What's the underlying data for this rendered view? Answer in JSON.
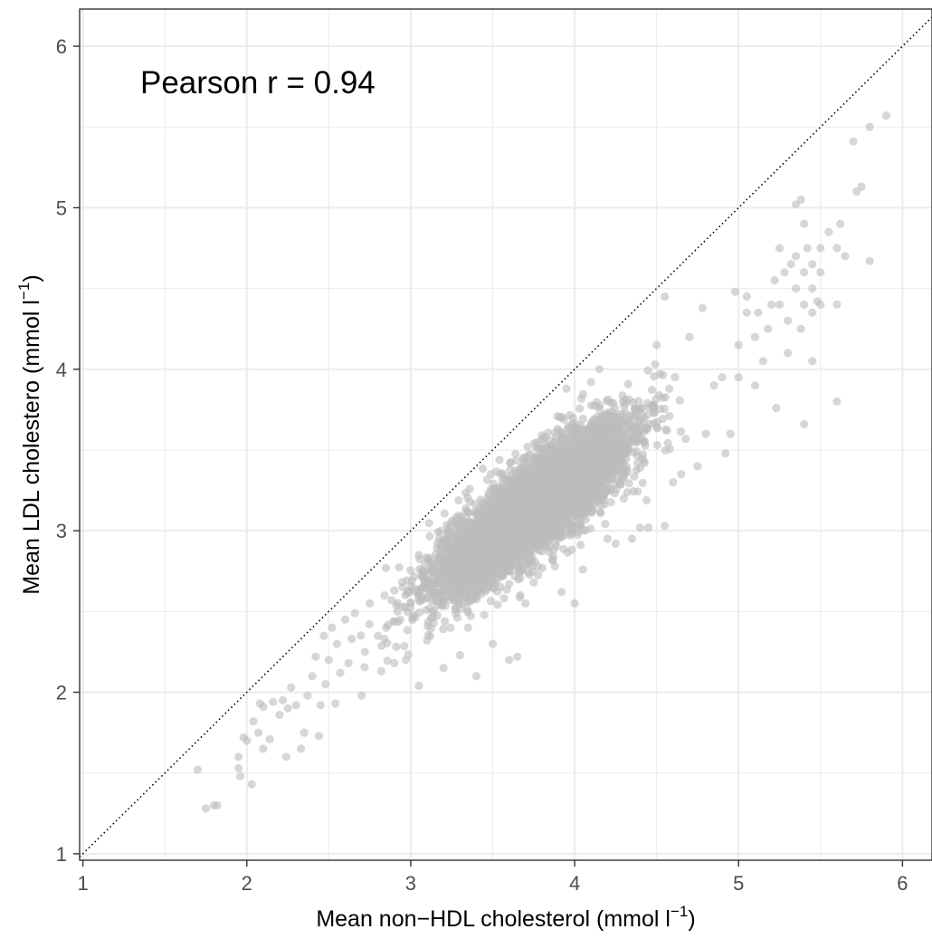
{
  "chart_data": {
    "type": "scatter",
    "annotation": "Pearson r = 0.94",
    "xlabel": {
      "main": "Mean non−HDL cholesterol (mmol l",
      "sup": "−1",
      "close": ")"
    },
    "ylabel": {
      "main": "Mean LDL cholestero (mmol l",
      "sup": "−1",
      "close": ")"
    },
    "xlim": [
      0.98,
      6.18
    ],
    "ylim": [
      0.96,
      6.23
    ],
    "x_ticks": [
      "1",
      "2",
      "3",
      "4",
      "5",
      "6"
    ],
    "y_ticks": [
      "1",
      "2",
      "3",
      "4",
      "5",
      "6"
    ],
    "x_tick_values": [
      1,
      2,
      3,
      4,
      5,
      6
    ],
    "y_tick_values": [
      1,
      2,
      3,
      4,
      5,
      6
    ],
    "reference_line": {
      "slope": 1,
      "intercept": 0,
      "style": "dotted"
    },
    "grid": true,
    "point_color": "#bdbdbd",
    "point_opacity": 0.6,
    "points": [
      [
        1.7,
        1.52
      ],
      [
        1.75,
        1.28
      ],
      [
        1.8,
        1.3
      ],
      [
        1.82,
        1.3
      ],
      [
        1.95,
        1.6
      ],
      [
        1.95,
        1.53
      ],
      [
        1.96,
        1.48
      ],
      [
        1.98,
        1.72
      ],
      [
        2.0,
        1.7
      ],
      [
        2.03,
        1.43
      ],
      [
        2.04,
        1.82
      ],
      [
        2.07,
        1.75
      ],
      [
        2.08,
        1.93
      ],
      [
        2.1,
        1.65
      ],
      [
        2.1,
        1.91
      ],
      [
        2.14,
        1.71
      ],
      [
        2.16,
        1.94
      ],
      [
        2.2,
        1.86
      ],
      [
        2.22,
        1.95
      ],
      [
        2.24,
        1.6
      ],
      [
        2.25,
        1.9
      ],
      [
        2.27,
        2.03
      ],
      [
        2.3,
        1.92
      ],
      [
        2.33,
        1.65
      ],
      [
        2.35,
        1.75
      ],
      [
        2.37,
        1.98
      ],
      [
        2.4,
        2.1
      ],
      [
        2.42,
        2.22
      ],
      [
        2.44,
        1.73
      ],
      [
        2.45,
        1.92
      ],
      [
        2.47,
        2.35
      ],
      [
        2.48,
        2.05
      ],
      [
        2.5,
        2.2
      ],
      [
        2.52,
        2.4
      ],
      [
        2.54,
        1.93
      ],
      [
        2.55,
        2.3
      ],
      [
        2.57,
        2.12
      ],
      [
        2.6,
        2.45
      ],
      [
        2.62,
        2.18
      ],
      [
        2.64,
        2.33
      ],
      [
        2.66,
        2.49
      ],
      [
        2.7,
        1.98
      ],
      [
        2.72,
        2.25
      ],
      [
        2.75,
        2.55
      ],
      [
        2.8,
        2.35
      ],
      [
        2.82,
        2.13
      ],
      [
        2.84,
        2.6
      ],
      [
        2.85,
        2.4
      ],
      [
        2.9,
        2.18
      ],
      [
        2.92,
        2.5
      ],
      [
        2.95,
        2.65
      ],
      [
        2.97,
        2.2
      ],
      [
        3.05,
        2.04
      ],
      [
        3.1,
        2.32
      ],
      [
        3.2,
        2.15
      ],
      [
        3.25,
        2.88
      ],
      [
        3.3,
        2.23
      ],
      [
        3.35,
        2.4
      ],
      [
        3.4,
        2.1
      ],
      [
        3.45,
        2.88
      ],
      [
        3.5,
        2.3
      ],
      [
        3.6,
        2.2
      ],
      [
        3.65,
        2.22
      ],
      [
        3.7,
        2.55
      ],
      [
        3.75,
        2.68
      ],
      [
        3.78,
        3.42
      ],
      [
        3.85,
        3.5
      ],
      [
        3.88,
        2.78
      ],
      [
        3.9,
        2.95
      ],
      [
        3.92,
        2.62
      ],
      [
        3.95,
        3.88
      ],
      [
        4.0,
        2.55
      ],
      [
        4.05,
        2.76
      ],
      [
        4.1,
        3.92
      ],
      [
        4.15,
        4.0
      ],
      [
        4.2,
        2.95
      ],
      [
        4.25,
        2.92
      ],
      [
        4.3,
        3.2
      ],
      [
        4.35,
        2.95
      ],
      [
        4.4,
        3.02
      ],
      [
        4.45,
        3.02
      ],
      [
        4.5,
        4.15
      ],
      [
        4.55,
        3.03
      ],
      [
        4.55,
        4.45
      ],
      [
        4.6,
        3.3
      ],
      [
        4.65,
        3.35
      ],
      [
        4.7,
        4.2
      ],
      [
        4.75,
        3.4
      ],
      [
        4.78,
        4.38
      ],
      [
        4.8,
        3.6
      ],
      [
        4.85,
        3.9
      ],
      [
        4.9,
        3.95
      ],
      [
        4.92,
        3.48
      ],
      [
        4.95,
        3.6
      ],
      [
        4.98,
        4.48
      ],
      [
        5.0,
        4.15
      ],
      [
        5.0,
        3.95
      ],
      [
        5.05,
        4.35
      ],
      [
        5.05,
        4.45
      ],
      [
        5.1,
        4.2
      ],
      [
        5.1,
        3.9
      ],
      [
        5.12,
        4.35
      ],
      [
        5.15,
        4.05
      ],
      [
        5.18,
        4.25
      ],
      [
        5.2,
        4.4
      ],
      [
        5.22,
        4.55
      ],
      [
        5.23,
        3.76
      ],
      [
        5.25,
        4.4
      ],
      [
        5.25,
        4.75
      ],
      [
        5.28,
        4.6
      ],
      [
        5.3,
        4.3
      ],
      [
        5.3,
        4.1
      ],
      [
        5.32,
        4.65
      ],
      [
        5.35,
        4.5
      ],
      [
        5.35,
        4.7
      ],
      [
        5.38,
        4.25
      ],
      [
        5.4,
        4.6
      ],
      [
        5.4,
        4.9
      ],
      [
        5.4,
        4.4
      ],
      [
        5.42,
        4.75
      ],
      [
        5.45,
        4.5
      ],
      [
        5.45,
        4.35
      ],
      [
        5.45,
        4.65
      ],
      [
        5.48,
        4.42
      ],
      [
        5.5,
        4.6
      ],
      [
        5.5,
        4.75
      ],
      [
        5.5,
        4.4
      ],
      [
        5.55,
        4.85
      ],
      [
        5.6,
        4.75
      ],
      [
        5.6,
        4.4
      ],
      [
        5.6,
        3.8
      ],
      [
        5.62,
        4.9
      ],
      [
        5.65,
        4.7
      ],
      [
        5.7,
        5.41
      ],
      [
        5.72,
        5.1
      ],
      [
        5.75,
        5.13
      ],
      [
        5.8,
        4.67
      ],
      [
        5.8,
        5.5
      ],
      [
        5.9,
        5.57
      ],
      [
        5.35,
        5.02
      ],
      [
        5.38,
        5.05
      ],
      [
        5.4,
        3.66
      ],
      [
        5.45,
        4.05
      ]
    ],
    "cloud_center": [
      3.75,
      3.15
    ],
    "cloud_slope": 0.87,
    "cloud_sd_major": 0.36,
    "cloud_sd_minor": 0.085,
    "cloud_count": 7000
  }
}
